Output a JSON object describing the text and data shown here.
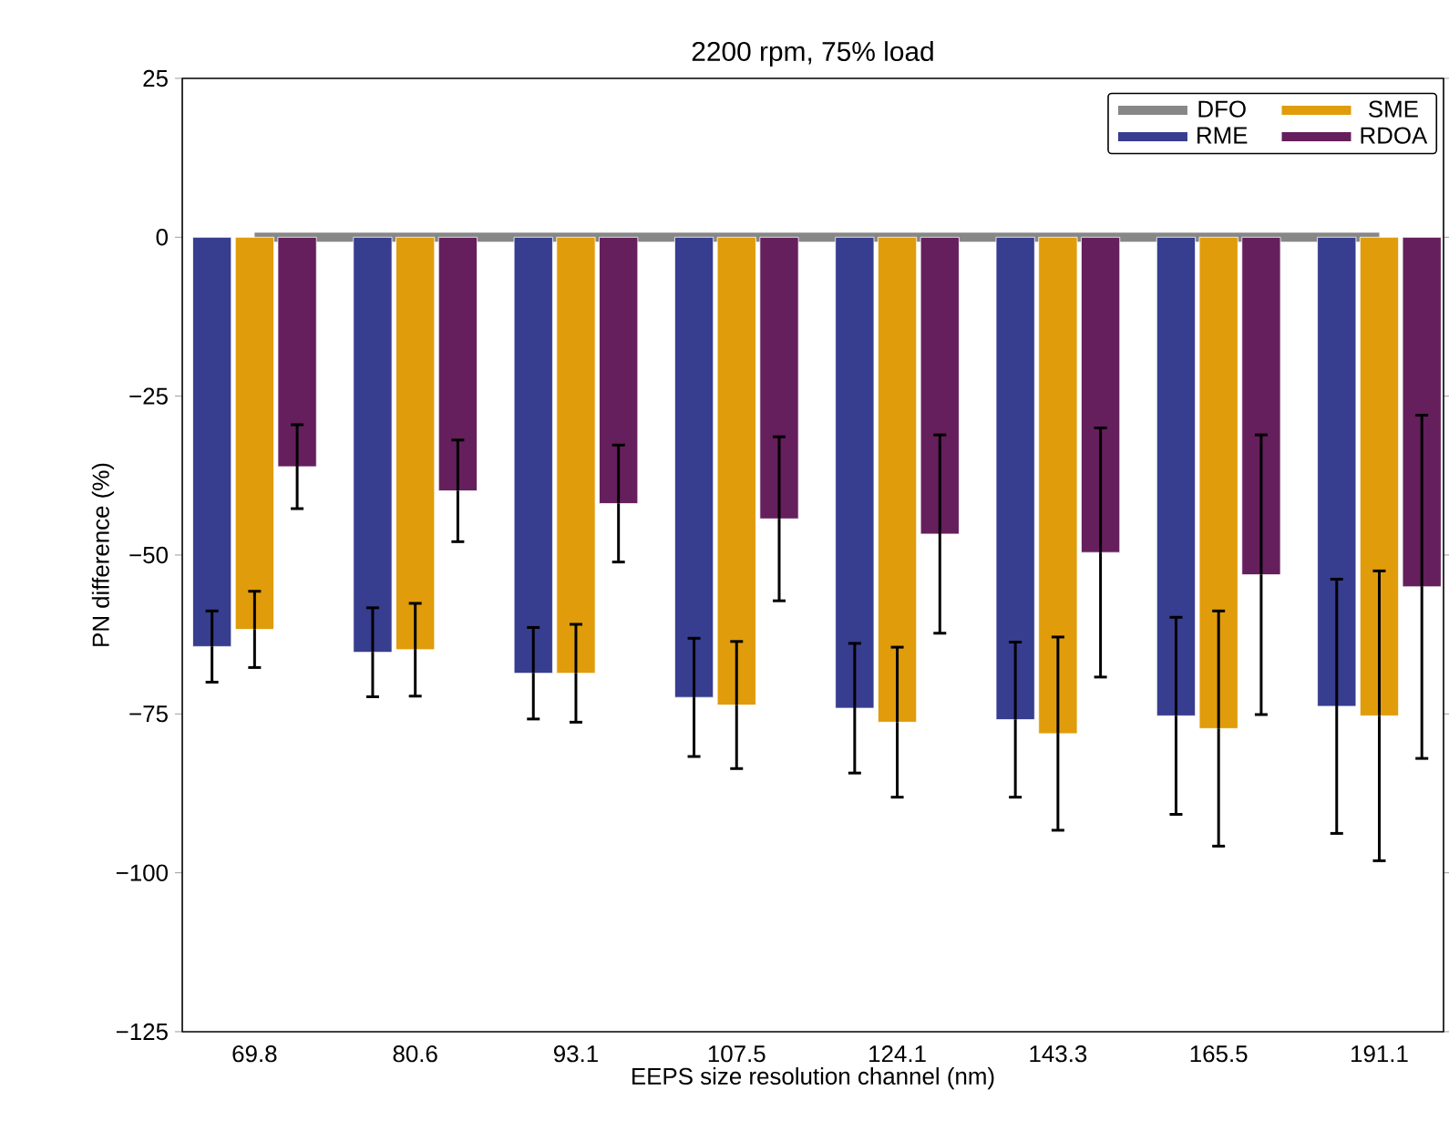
{
  "chart_data": {
    "type": "bar",
    "title": "2200 rpm, 75% load",
    "xlabel": "EEPS size resolution channel (nm)",
    "ylabel": "PN difference (%)",
    "categories": [
      "69.8",
      "80.6",
      "93.1",
      "107.5",
      "124.1",
      "143.3",
      "165.5",
      "191.1"
    ],
    "series": [
      {
        "name": "DFO",
        "type": "line",
        "color": "#878787",
        "values": [
          0,
          0,
          0,
          0,
          0,
          0,
          0,
          0
        ]
      },
      {
        "name": "RME",
        "color": "#373d8f",
        "values": [
          -64.4,
          -65.3,
          -68.6,
          -72.4,
          -74.1,
          -75.9,
          -75.3,
          -73.8
        ],
        "errors": [
          5.6,
          7,
          7.2,
          9.3,
          10.2,
          12.2,
          15.5,
          20
        ]
      },
      {
        "name": "SME",
        "color": "#e09c0a",
        "values": [
          -61.7,
          -64.9,
          -68.6,
          -73.6,
          -76.3,
          -78.1,
          -77.3,
          -75.3
        ],
        "errors": [
          6,
          7.3,
          7.7,
          10,
          11.8,
          15.2,
          18.5,
          22.8
        ]
      },
      {
        "name": "RDOA",
        "color": "#651f5c",
        "values": [
          -36.1,
          -39.9,
          -41.9,
          -44.3,
          -46.7,
          -49.6,
          -53.1,
          -55
        ],
        "errors": [
          6.6,
          8,
          9.2,
          12.9,
          15.6,
          19.6,
          22,
          27
        ]
      }
    ],
    "ylim": [
      -125,
      25
    ],
    "yticks": [
      25,
      {
        "value": 0,
        "label": "0"
      },
      {
        "value": -25,
        "label": "−25"
      },
      {
        "value": -50,
        "label": "−50"
      },
      {
        "value": -75,
        "label": "−75"
      },
      {
        "value": -100,
        "label": "−100"
      },
      {
        "value": -125,
        "label": "−125"
      }
    ],
    "legend": "top right",
    "grid": false
  }
}
